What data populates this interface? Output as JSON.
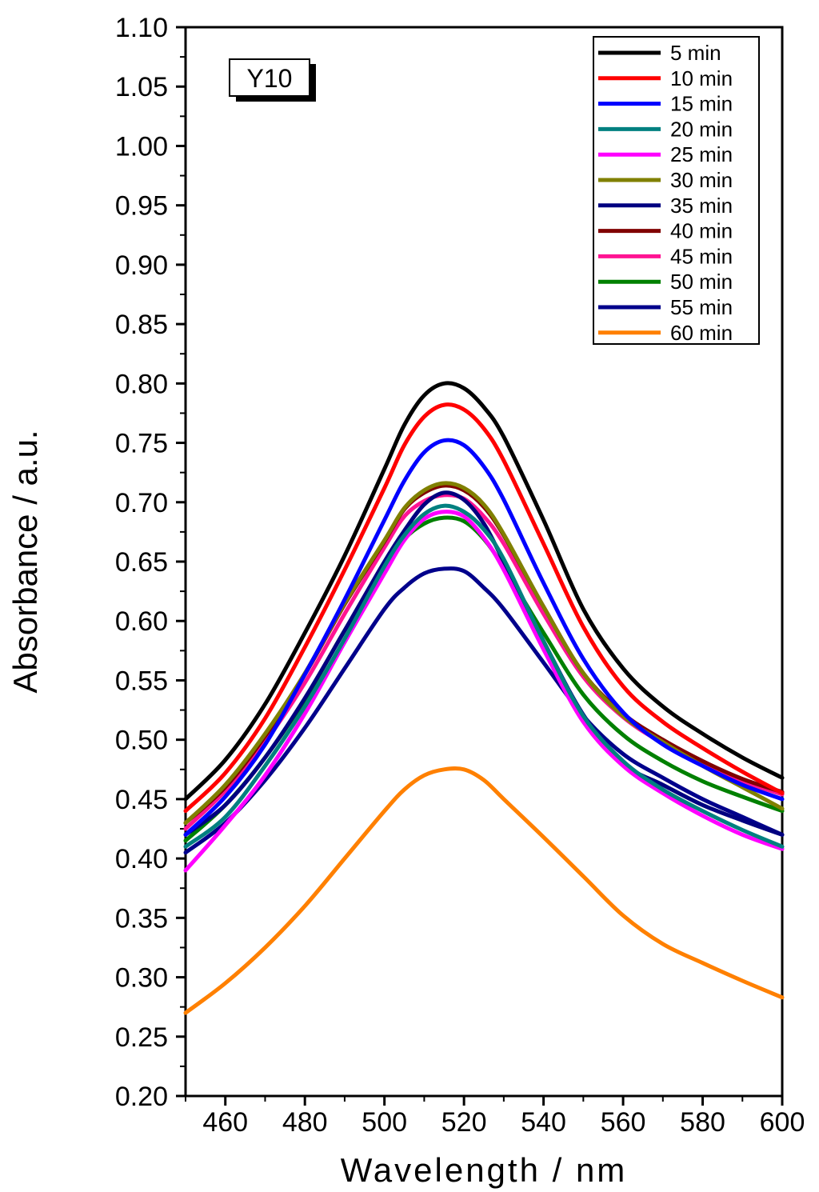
{
  "chart_data": {
    "type": "line",
    "title": "",
    "panel_label": "Y10",
    "xlabel": "Wavelength / nm",
    "ylabel": "Absorbance / a.u.",
    "xlim": [
      450,
      600
    ],
    "ylim": [
      0.2,
      1.1
    ],
    "xticks": [
      460,
      480,
      500,
      520,
      540,
      560,
      580,
      600
    ],
    "yticks": [
      "0.20",
      "0.25",
      "0.30",
      "0.35",
      "0.40",
      "0.45",
      "0.50",
      "0.55",
      "0.60",
      "0.65",
      "0.70",
      "0.75",
      "0.80",
      "0.85",
      "0.90",
      "0.95",
      "1.00",
      "1.05",
      "1.10"
    ],
    "legend_position": "top-right",
    "x": [
      450,
      460,
      470,
      480,
      490,
      500,
      505,
      510,
      515,
      520,
      525,
      530,
      540,
      550,
      560,
      570,
      580,
      590,
      600
    ],
    "series": [
      {
        "name": "5 min",
        "color": "#000000",
        "values": [
          0.45,
          0.483,
          0.53,
          0.59,
          0.655,
          0.728,
          0.765,
          0.79,
          0.8,
          0.796,
          0.78,
          0.755,
          0.685,
          0.61,
          0.56,
          0.528,
          0.505,
          0.485,
          0.468
        ]
      },
      {
        "name": "10 min",
        "color": "#ff0000",
        "values": [
          0.44,
          0.472,
          0.518,
          0.578,
          0.643,
          0.712,
          0.748,
          0.772,
          0.782,
          0.778,
          0.762,
          0.735,
          0.665,
          0.595,
          0.545,
          0.515,
          0.493,
          0.473,
          0.455
        ]
      },
      {
        "name": "15 min",
        "color": "#0000ff",
        "values": [
          0.42,
          0.452,
          0.496,
          0.555,
          0.618,
          0.685,
          0.718,
          0.742,
          0.752,
          0.748,
          0.73,
          0.702,
          0.632,
          0.568,
          0.523,
          0.496,
          0.478,
          0.462,
          0.45
        ]
      },
      {
        "name": "20 min",
        "color": "#008080",
        "values": [
          0.41,
          0.435,
          0.478,
          0.528,
          0.585,
          0.646,
          0.672,
          0.69,
          0.697,
          0.692,
          0.677,
          0.652,
          0.583,
          0.52,
          0.482,
          0.458,
          0.44,
          0.424,
          0.41
        ]
      },
      {
        "name": "25 min",
        "color": "#ff00ff",
        "values": [
          0.39,
          0.428,
          0.47,
          0.522,
          0.582,
          0.64,
          0.668,
          0.686,
          0.692,
          0.688,
          0.67,
          0.643,
          0.576,
          0.515,
          0.478,
          0.455,
          0.436,
          0.42,
          0.408
        ]
      },
      {
        "name": "30 min",
        "color": "#808000",
        "values": [
          0.43,
          0.462,
          0.505,
          0.556,
          0.615,
          0.668,
          0.695,
          0.71,
          0.716,
          0.712,
          0.698,
          0.673,
          0.612,
          0.556,
          0.52,
          0.498,
          0.478,
          0.46,
          0.442
        ]
      },
      {
        "name": "35 min",
        "color": "#000080",
        "values": [
          0.42,
          0.445,
          0.485,
          0.535,
          0.592,
          0.65,
          0.676,
          0.698,
          0.708,
          0.702,
          0.682,
          0.65,
          0.583,
          0.521,
          0.48,
          0.462,
          0.445,
          0.432,
          0.42
        ]
      },
      {
        "name": "40 min",
        "color": "#800000",
        "values": [
          0.43,
          0.46,
          0.503,
          0.555,
          0.614,
          0.667,
          0.694,
          0.708,
          0.714,
          0.71,
          0.696,
          0.672,
          0.612,
          0.556,
          0.522,
          0.5,
          0.482,
          0.467,
          0.456
        ]
      },
      {
        "name": "45 min",
        "color": "#ff1493",
        "values": [
          0.425,
          0.457,
          0.498,
          0.548,
          0.606,
          0.662,
          0.688,
          0.701,
          0.706,
          0.703,
          0.688,
          0.665,
          0.606,
          0.553,
          0.519,
          0.497,
          0.479,
          0.465,
          0.454
        ]
      },
      {
        "name": "50 min",
        "color": "#008000",
        "values": [
          0.415,
          0.445,
          0.485,
          0.534,
          0.592,
          0.645,
          0.669,
          0.682,
          0.687,
          0.684,
          0.669,
          0.645,
          0.59,
          0.538,
          0.504,
          0.482,
          0.465,
          0.452,
          0.44
        ]
      },
      {
        "name": "55 min",
        "color": "#00008b",
        "values": [
          0.405,
          0.43,
          0.466,
          0.51,
          0.56,
          0.61,
          0.628,
          0.64,
          0.644,
          0.642,
          0.628,
          0.61,
          0.565,
          0.52,
          0.488,
          0.468,
          0.45,
          0.435,
          0.42
        ]
      },
      {
        "name": "60 min",
        "color": "#ff8000",
        "values": [
          0.27,
          0.295,
          0.325,
          0.36,
          0.4,
          0.44,
          0.458,
          0.47,
          0.475,
          0.475,
          0.466,
          0.45,
          0.418,
          0.385,
          0.352,
          0.328,
          0.312,
          0.297,
          0.283
        ]
      }
    ]
  }
}
